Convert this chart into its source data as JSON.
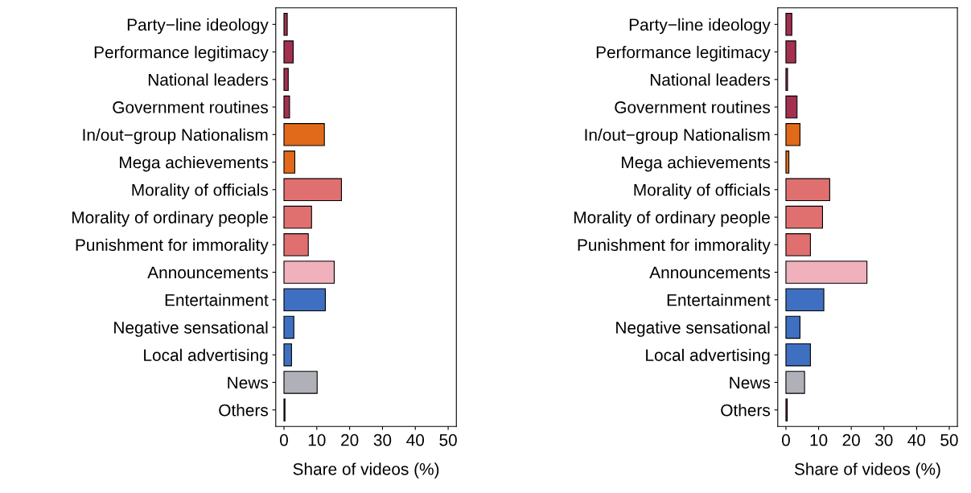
{
  "chart_data": [
    {
      "type": "bar",
      "orientation": "horizontal",
      "xlabel": "Share of videos (%)",
      "categories": [
        "Party−line ideology",
        "Performance legitimacy",
        "National leaders",
        "Government routines",
        "In/out−group Nationalism",
        "Mega achievements",
        "Morality of officials",
        "Morality of ordinary people",
        "Punishment for immorality",
        "Announcements",
        "Entertainment",
        "Negative sensational",
        "Local advertising",
        "News",
        "Others"
      ],
      "values": [
        1.0,
        2.8,
        1.3,
        1.7,
        12.3,
        3.3,
        17.5,
        8.4,
        7.4,
        15.3,
        12.6,
        3.0,
        2.3,
        10.1,
        0.3
      ],
      "colors": [
        "#a3304f",
        "#a3304f",
        "#a3304f",
        "#a3304f",
        "#e06a1a",
        "#e06a1a",
        "#e07070",
        "#e07070",
        "#e07070",
        "#f0b0bc",
        "#3f6fc0",
        "#3f6fc0",
        "#3f6fc0",
        "#b0b0b8",
        "#a3304f"
      ],
      "xlim": [
        -2.5,
        52.5
      ],
      "xticks": [
        0,
        10,
        20,
        30,
        40,
        50
      ],
      "grid": false,
      "legend": false
    },
    {
      "type": "bar",
      "orientation": "horizontal",
      "xlabel": "Share of videos (%)",
      "categories": [
        "Party−line ideology",
        "Performance legitimacy",
        "National leaders",
        "Government routines",
        "In/out−group Nationalism",
        "Mega achievements",
        "Morality of officials",
        "Morality of ordinary people",
        "Punishment for immorality",
        "Announcements",
        "Entertainment",
        "Negative sensational",
        "Local advertising",
        "News",
        "Others"
      ],
      "values": [
        1.8,
        3.0,
        0.5,
        3.4,
        4.3,
        0.9,
        13.4,
        11.2,
        7.5,
        24.8,
        11.6,
        4.3,
        7.5,
        5.7,
        0.4
      ],
      "colors": [
        "#a3304f",
        "#a3304f",
        "#a3304f",
        "#a3304f",
        "#e06a1a",
        "#e06a1a",
        "#e07070",
        "#e07070",
        "#e07070",
        "#f0b0bc",
        "#3f6fc0",
        "#3f6fc0",
        "#3f6fc0",
        "#b0b0b8",
        "#a3304f"
      ],
      "xlim": [
        -2.5,
        52.5
      ],
      "xticks": [
        0,
        10,
        20,
        30,
        40,
        50
      ],
      "grid": false,
      "legend": false
    }
  ]
}
